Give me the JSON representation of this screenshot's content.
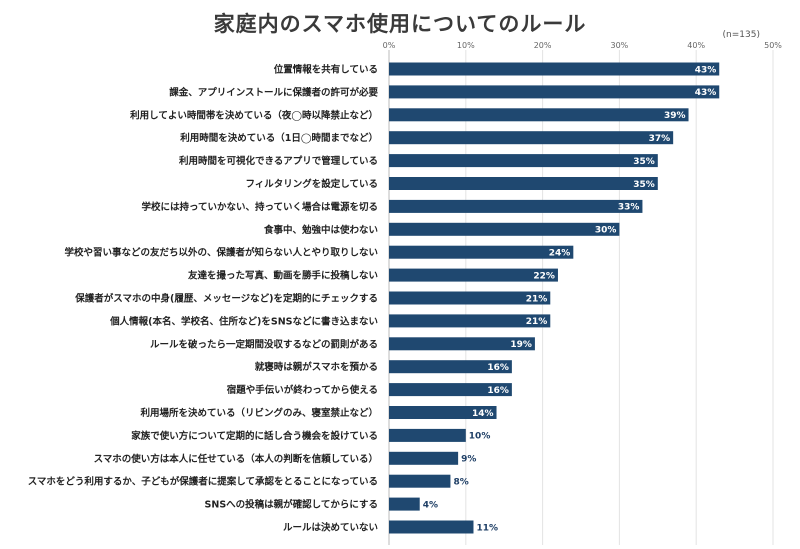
{
  "chart_data": {
    "type": "bar",
    "orientation": "horizontal",
    "title": "家庭内のスマホ使用についてのルール",
    "note": "(n=135)",
    "xlim": [
      0,
      50
    ],
    "ticks": [
      "0%",
      "10%",
      "20%",
      "30%",
      "40%",
      "50%"
    ],
    "bar_color": "#1f4870",
    "categories": [
      "位置情報を共有している",
      "課金、アプリインストールに保護者の許可が必要",
      "利用してよい時間帯を決めている（夜◯時以降禁止など）",
      "利用時間を決めている（1日◯時間までなど）",
      "利用時間を可視化できるアプリで管理している",
      "フィルタリングを設定している",
      "学校には持っていかない、持っていく場合は電源を切る",
      "食事中、勉強中は使わない",
      "学校や習い事などの友だち以外の、保護者が知らない人とやり取りしない",
      "友達を撮った写真、動画を勝手に投稿しない",
      "保護者がスマホの中身(履歴、メッセージなど)を定期的にチェックする",
      "個人情報(本名、学校名、住所など)をSNSなどに書き込まない",
      "ルールを破ったら一定期間没収するなどの罰則がある",
      "就寝時は親がスマホを預かる",
      "宿題や手伝いが終わってから使える",
      "利用場所を決めている（リビングのみ、寝室禁止など）",
      "家族で使い方について定期的に話し合う機会を設けている",
      "スマホの使い方は本人に任せている（本人の判断を信頼している）",
      "スマホをどう利用するか、子どもが保護者に提案して承認をとることになっている",
      "SNSへの投稿は親が確認してからにする",
      "ルールは決めていない"
    ],
    "values": [
      43,
      43,
      39,
      37,
      35,
      35,
      33,
      30,
      24,
      22,
      21,
      21,
      19,
      16,
      16,
      14,
      10,
      9,
      8,
      4,
      11
    ],
    "labels": [
      "43%",
      "43%",
      "39%",
      "37%",
      "35%",
      "35%",
      "33%",
      "30%",
      "24%",
      "22%",
      "21%",
      "21%",
      "19%",
      "16%",
      "16%",
      "14%",
      "10%",
      "9%",
      "8%",
      "4%",
      "11%"
    ]
  }
}
